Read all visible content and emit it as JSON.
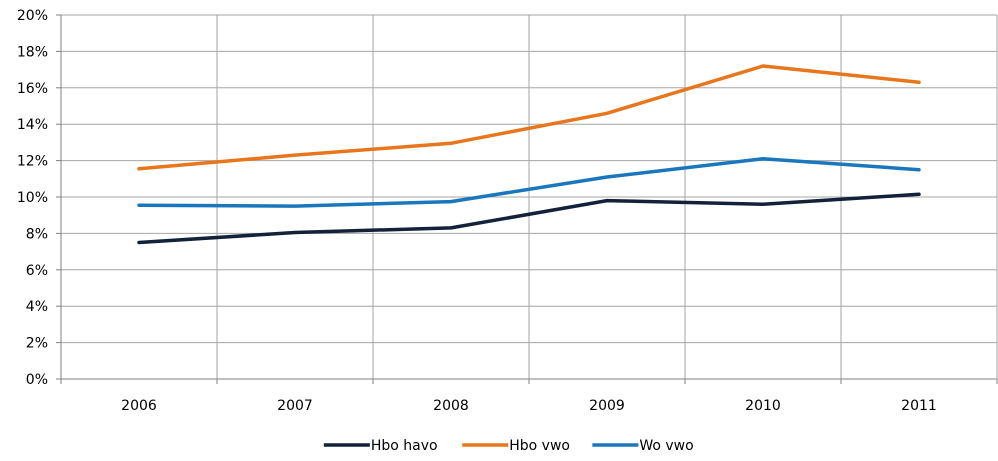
{
  "chart_data": {
    "type": "line",
    "categories": [
      "2006",
      "2007",
      "2008",
      "2009",
      "2010",
      "2011"
    ],
    "series": [
      {
        "name": "Hbo havo",
        "color": "#13213a",
        "values": [
          7.5,
          8.05,
          8.3,
          9.8,
          9.6,
          10.15
        ]
      },
      {
        "name": "Hbo vwo",
        "color": "#e8761d",
        "values": [
          11.55,
          12.3,
          12.95,
          14.6,
          17.2,
          16.3
        ]
      },
      {
        "name": "Wo vwo",
        "color": "#1a77bd",
        "values": [
          9.55,
          9.5,
          9.75,
          11.1,
          12.1,
          11.5
        ]
      }
    ],
    "y_ticks": [
      "0%",
      "2%",
      "4%",
      "6%",
      "8%",
      "10%",
      "12%",
      "14%",
      "16%",
      "18%",
      "20%"
    ],
    "ylim": [
      0,
      20
    ],
    "grid": true,
    "legend_position": "bottom-center"
  }
}
